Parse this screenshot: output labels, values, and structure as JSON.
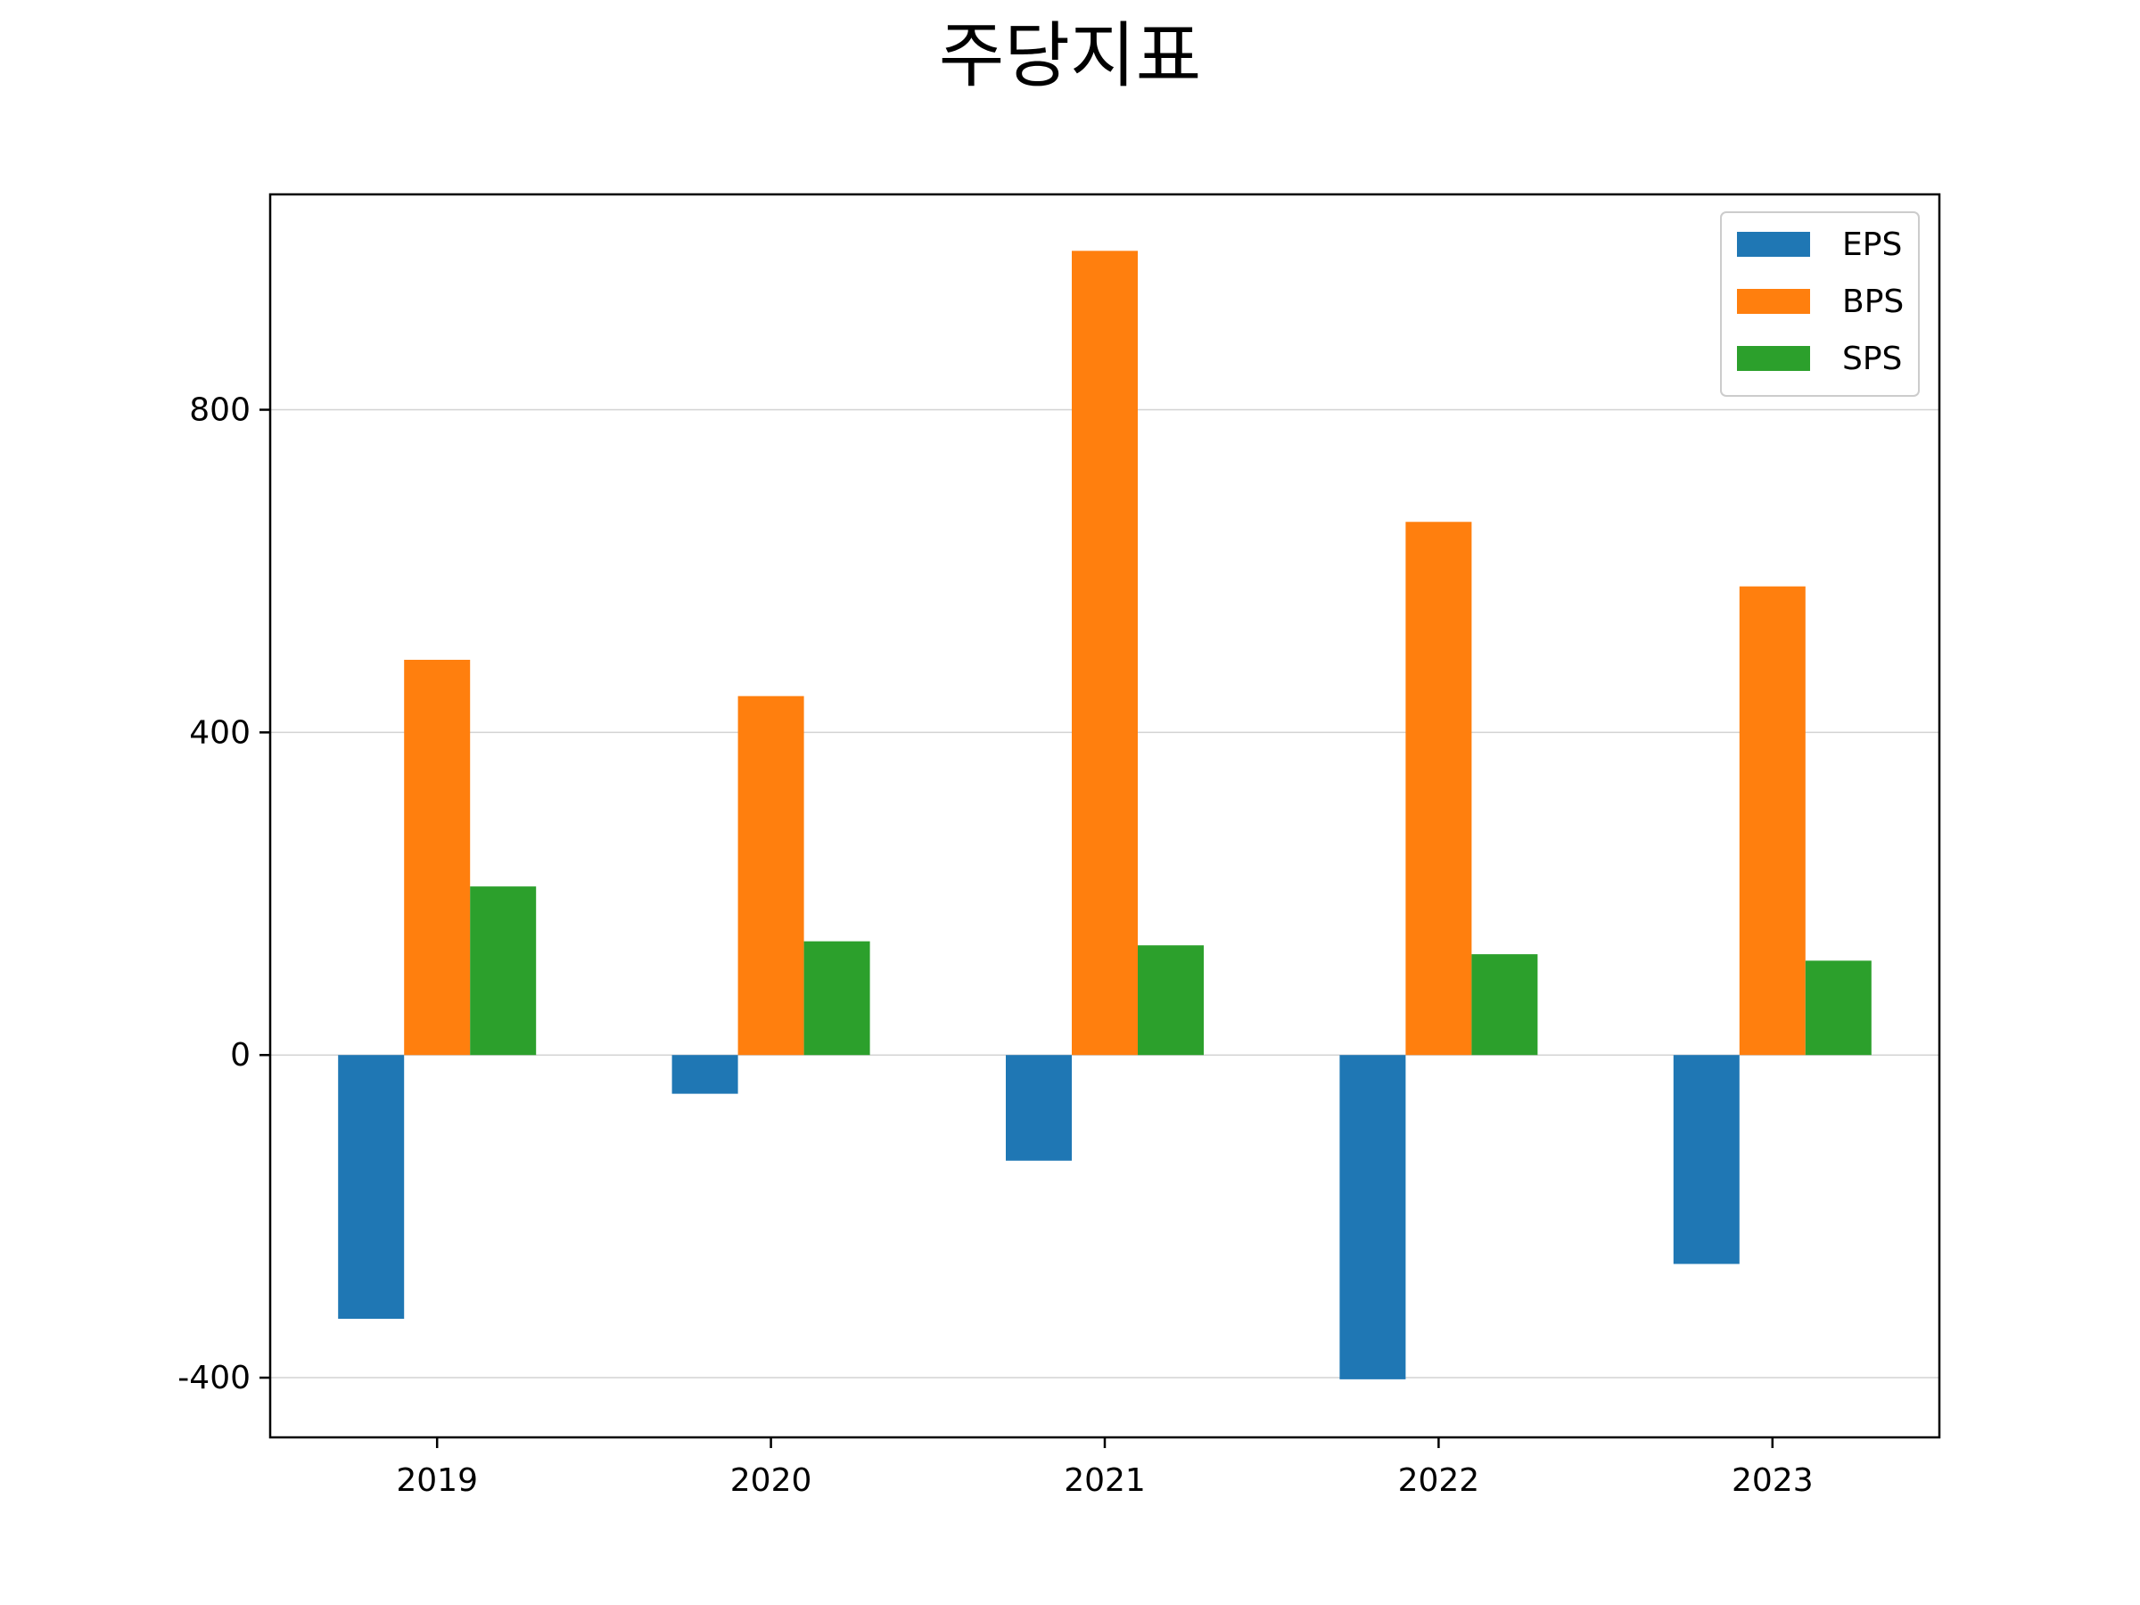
{
  "chart_data": {
    "type": "bar",
    "title": "주당지표",
    "xlabel": "",
    "ylabel": "",
    "categories": [
      "2019",
      "2020",
      "2021",
      "2022",
      "2023"
    ],
    "series": [
      {
        "name": "EPS",
        "color": "#1f77b4",
        "values": [
          -327,
          -48,
          -131,
          -402,
          -259
        ]
      },
      {
        "name": "BPS",
        "color": "#ff7f0e",
        "values": [
          490,
          445,
          997,
          661,
          581
        ]
      },
      {
        "name": "SPS",
        "color": "#2ca02c",
        "values": [
          209,
          141,
          136,
          125,
          117
        ]
      }
    ],
    "ylim": [
      -474,
      1067
    ],
    "yticks": [
      -400,
      0,
      400,
      800
    ],
    "ytick_labels": [
      "-400",
      "0",
      "400",
      "800"
    ],
    "grid": "horizontal",
    "legend_position": "top-right"
  }
}
